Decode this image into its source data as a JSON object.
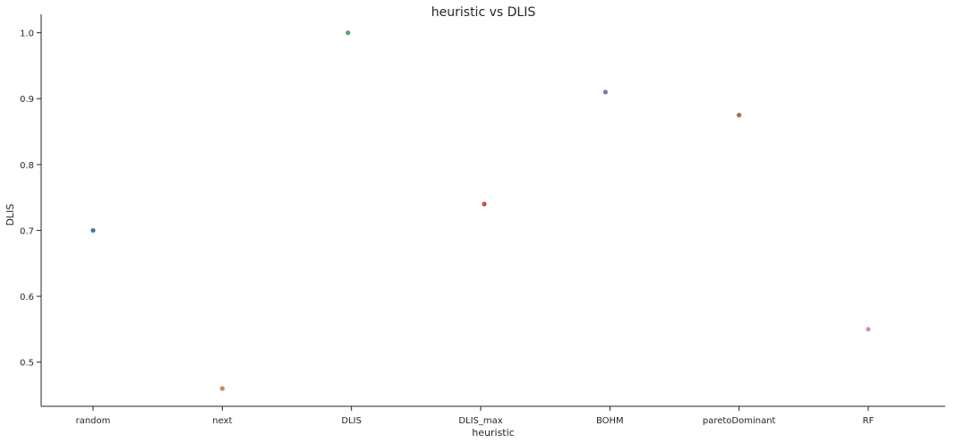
{
  "chart_data": {
    "type": "scatter",
    "title": "heuristic vs DLIS",
    "xlabel": "heuristic",
    "ylabel": "DLIS",
    "categories": [
      "random",
      "next",
      "DLIS",
      "DLIS_max",
      "BOHM",
      "paretoDominant",
      "RF"
    ],
    "values": [
      0.7,
      0.46,
      1.0,
      0.74,
      0.91,
      0.875,
      0.55
    ],
    "colors": [
      "#4c72b0",
      "#dd8452",
      "#55a868",
      "#c44e52",
      "#8172b3",
      "#937860",
      "#da8bc3"
    ],
    "yticks": [
      "0.5",
      "0.6",
      "0.7",
      "0.8",
      "0.9",
      "1.0"
    ],
    "ylim": [
      0.433,
      1.028
    ],
    "grid": false,
    "legend": false
  }
}
